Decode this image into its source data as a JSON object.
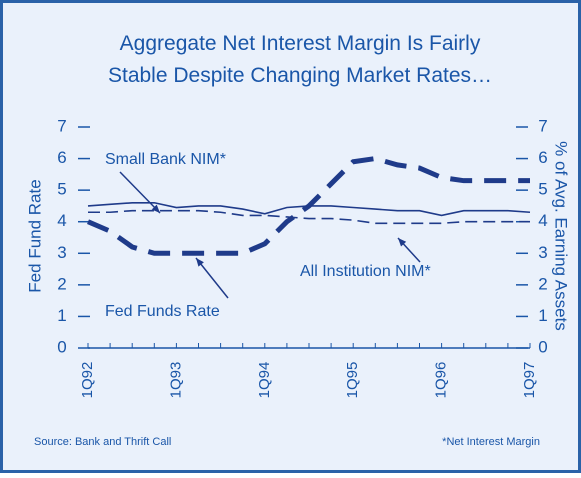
{
  "chart_data": {
    "type": "line",
    "title": [
      "Aggregate Net Interest Margin Is Fairly",
      "Stable Despite Changing Market Rates…"
    ],
    "y_label": "Fed Fund Rate",
    "y2_label": "% of Avg. Earning Assets",
    "categories": [
      "1Q92",
      null,
      null,
      null,
      "1Q93",
      null,
      null,
      null,
      "1Q94",
      null,
      null,
      null,
      "1Q95",
      null,
      null,
      null,
      "1Q96",
      null,
      null,
      null,
      "1Q97"
    ],
    "ylim": [
      0,
      7
    ],
    "yticks": [
      0,
      1,
      2,
      3,
      4,
      5,
      6,
      7
    ],
    "y2lim": [
      0,
      7
    ],
    "y2ticks": [
      0,
      1,
      2,
      3,
      4,
      5,
      6,
      7
    ],
    "series": [
      {
        "name": "Fed Funds Rate",
        "color": "#1f3b8a",
        "axis": "y",
        "line_style": "thick-dashed",
        "values": [
          4.0,
          3.7,
          3.2,
          3.0,
          3.0,
          3.0,
          3.0,
          3.0,
          3.3,
          4.0,
          4.5,
          5.2,
          5.9,
          6.0,
          5.8,
          5.7,
          5.4,
          5.3,
          5.3,
          5.3,
          5.3
        ]
      },
      {
        "name": "Small Bank NIM*",
        "color": "#1f3b8a",
        "axis": "y2",
        "line_style": "solid",
        "values": [
          4.5,
          4.55,
          4.6,
          4.6,
          4.45,
          4.5,
          4.5,
          4.4,
          4.25,
          4.45,
          4.5,
          4.5,
          4.45,
          4.4,
          4.35,
          4.35,
          4.2,
          4.35,
          4.35,
          4.35,
          4.3
        ]
      },
      {
        "name": "All Institution NIM*",
        "color": "#1f3b8a",
        "axis": "y2",
        "line_style": "dashed",
        "values": [
          4.3,
          4.3,
          4.35,
          4.35,
          4.35,
          4.35,
          4.3,
          4.2,
          4.2,
          4.15,
          4.1,
          4.1,
          4.05,
          3.95,
          3.95,
          3.95,
          3.95,
          4.0,
          4.0,
          4.0,
          4.0
        ]
      }
    ],
    "source": "Source:  Bank and Thrift Call",
    "footnote": "*Net Interest Margin"
  }
}
